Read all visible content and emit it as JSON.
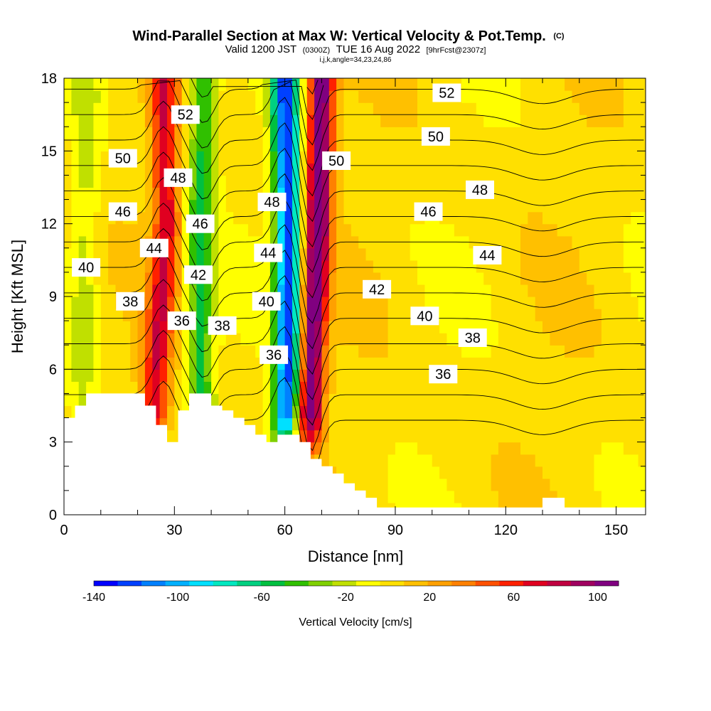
{
  "title": {
    "main": "Wind-Parallel Section at Max W: Vertical Velocity & Pot.Temp.",
    "copyright": "(C)",
    "valid_prefix": "Valid 1200 JST",
    "valid_utc": "(0300Z)",
    "valid_date": "TUE 16 Aug 2022",
    "forecast": "[9hrFcst@2307z]",
    "grid_info": "i,j,k,angle=34,23,24,86"
  },
  "chart_data": {
    "type": "heatmap",
    "xlabel": "Distance [nm]",
    "ylabel": "Height [Kft MSL]",
    "xlim": [
      0,
      158
    ],
    "ylim": [
      0,
      18
    ],
    "x_ticks": [
      0,
      30,
      60,
      90,
      120,
      150
    ],
    "y_ticks": [
      0,
      3,
      6,
      9,
      12,
      15,
      18
    ],
    "colorbar": {
      "label": "Vertical Velocity [cm/s]",
      "range": [
        -140,
        110
      ],
      "tick_values": [
        -140,
        -100,
        -60,
        -20,
        20,
        60,
        100
      ],
      "colors": [
        "#0000ff",
        "#0040ff",
        "#0080ff",
        "#00b0ff",
        "#00e0ff",
        "#00e8c0",
        "#00d080",
        "#00c040",
        "#30c000",
        "#80d000",
        "#c0e000",
        "#ffff00",
        "#ffe000",
        "#ffc000",
        "#ffa000",
        "#ff8000",
        "#ff5000",
        "#ff2000",
        "#e00020",
        "#c00040",
        "#a00060",
        "#800080"
      ]
    },
    "updraft_bands": [
      {
        "x": [
          27,
          28,
          25,
          24
        ],
        "strength": 70
      },
      {
        "x": [
          70,
          69,
          67,
          66
        ],
        "strength": 110
      }
    ],
    "downdraft_bands": [
      {
        "x": [
          6,
          6,
          5,
          5
        ],
        "strength": -20
      },
      {
        "x": [
          38,
          37,
          37,
          38
        ],
        "strength": -55
      },
      {
        "x": [
          60,
          61,
          61,
          59
        ],
        "strength": -125
      }
    ],
    "terrain_kft": [
      [
        0,
        4.0
      ],
      [
        3,
        4.0
      ],
      [
        3,
        4.5
      ],
      [
        6,
        4.5
      ],
      [
        6,
        5.0
      ],
      [
        22,
        5.0
      ],
      [
        22,
        4.5
      ],
      [
        25,
        4.5
      ],
      [
        25,
        3.7
      ],
      [
        28,
        3.7
      ],
      [
        28,
        3.0
      ],
      [
        31,
        3.0
      ],
      [
        31,
        4.3
      ],
      [
        34,
        4.3
      ],
      [
        34,
        5.0
      ],
      [
        40,
        5.0
      ],
      [
        40,
        4.5
      ],
      [
        43,
        4.5
      ],
      [
        43,
        4.3
      ],
      [
        46,
        4.3
      ],
      [
        46,
        4.0
      ],
      [
        49,
        4.0
      ],
      [
        49,
        3.7
      ],
      [
        52,
        3.7
      ],
      [
        52,
        3.3
      ],
      [
        55,
        3.3
      ],
      [
        55,
        3.0
      ],
      [
        58,
        3.0
      ],
      [
        58,
        3.3
      ],
      [
        64,
        3.3
      ],
      [
        64,
        3.0
      ],
      [
        67,
        3.0
      ],
      [
        67,
        2.3
      ],
      [
        70,
        2.3
      ],
      [
        70,
        2.0
      ],
      [
        73,
        2.0
      ],
      [
        73,
        1.7
      ],
      [
        76,
        1.7
      ],
      [
        76,
        1.3
      ],
      [
        79,
        1.3
      ],
      [
        79,
        1.0
      ],
      [
        82,
        1.0
      ],
      [
        82,
        0.7
      ],
      [
        85,
        0.7
      ],
      [
        85,
        0.3
      ],
      [
        88,
        0.3
      ],
      [
        88,
        0.3
      ],
      [
        130,
        0.3
      ],
      [
        130,
        0.7
      ],
      [
        136,
        0.7
      ],
      [
        136,
        0.3
      ],
      [
        158,
        0.3
      ]
    ],
    "theta_contours_C": [
      36,
      38,
      40,
      42,
      44,
      46,
      48,
      50,
      52
    ],
    "contour_labels": [
      {
        "text": "52",
        "x": 33,
        "y": 16.5
      },
      {
        "text": "50",
        "x": 16,
        "y": 14.7
      },
      {
        "text": "48",
        "x": 31,
        "y": 13.9
      },
      {
        "text": "46",
        "x": 16,
        "y": 12.5
      },
      {
        "text": "46",
        "x": 37,
        "y": 12.0
      },
      {
        "text": "44",
        "x": 24.5,
        "y": 11.0
      },
      {
        "text": "42",
        "x": 36.5,
        "y": 9.9
      },
      {
        "text": "40",
        "x": 6,
        "y": 10.2
      },
      {
        "text": "38",
        "x": 18,
        "y": 8.8
      },
      {
        "text": "36",
        "x": 32,
        "y": 8.0
      },
      {
        "text": "38",
        "x": 43,
        "y": 7.8
      },
      {
        "text": "48",
        "x": 56.5,
        "y": 12.9
      },
      {
        "text": "44",
        "x": 55.5,
        "y": 10.8
      },
      {
        "text": "40",
        "x": 55,
        "y": 8.8
      },
      {
        "text": "36",
        "x": 57,
        "y": 6.6
      },
      {
        "text": "50",
        "x": 74,
        "y": 14.6
      },
      {
        "text": "52",
        "x": 104,
        "y": 17.4
      },
      {
        "text": "50",
        "x": 101,
        "y": 15.6
      },
      {
        "text": "48",
        "x": 113,
        "y": 13.4
      },
      {
        "text": "46",
        "x": 99,
        "y": 12.5
      },
      {
        "text": "44",
        "x": 115,
        "y": 10.7
      },
      {
        "text": "42",
        "x": 85,
        "y": 9.3
      },
      {
        "text": "40",
        "x": 98,
        "y": 8.2
      },
      {
        "text": "38",
        "x": 111,
        "y": 7.3
      },
      {
        "text": "36",
        "x": 103,
        "y": 5.8
      }
    ]
  }
}
